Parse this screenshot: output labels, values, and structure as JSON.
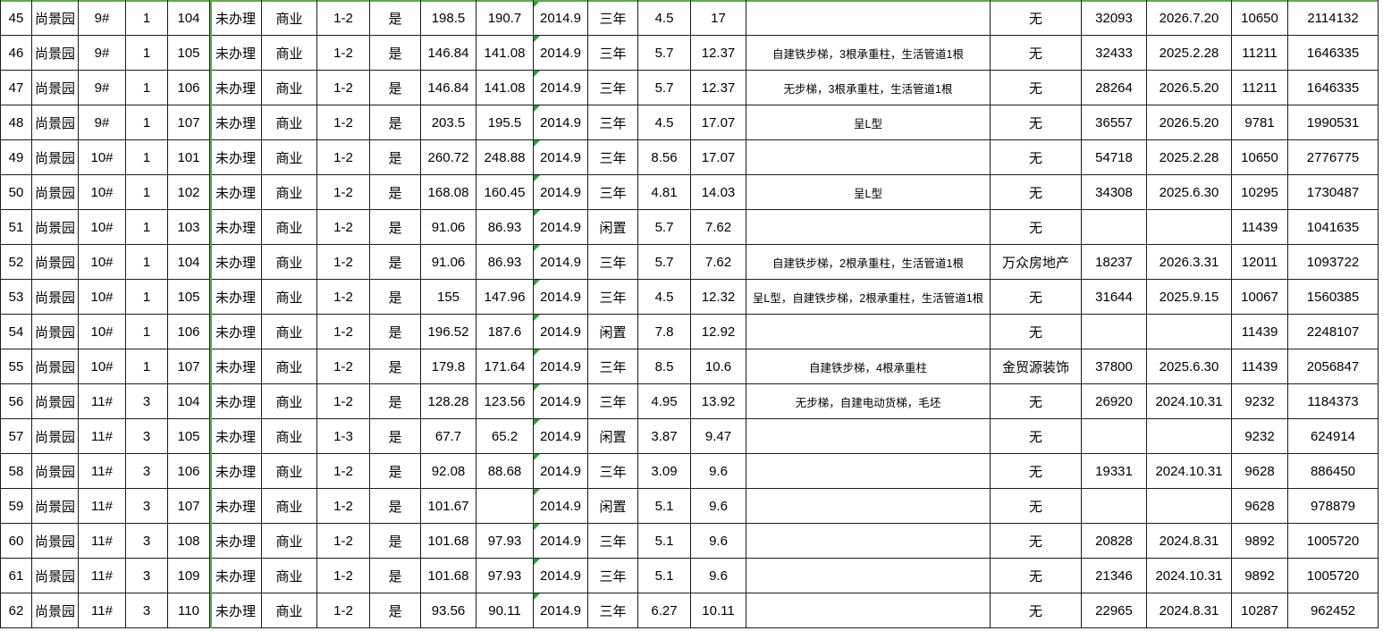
{
  "app": {
    "type": "spreadsheet-grid",
    "visible_rows": "45-62",
    "project_name": "尚景园"
  },
  "colors": {
    "grid_border": "#1c1c1c",
    "page_break_green": "#62a84e",
    "error_triangle_green": "#2e9e38",
    "cell_background": "#ffffff",
    "text": "#000000"
  },
  "markers": {
    "error_indicator_column_index": 11,
    "error_indicator_note": "green triangle in top-left corner of every 2014.9 cell",
    "page_break_vertical_x_column_boundary": "between column 5 and column 6",
    "page_break_horizontal": "green line across top edge of visible area"
  },
  "table": {
    "rows": [
      [
        "45",
        "尚景园",
        "9#",
        "1",
        "104",
        "未办理",
        "商业",
        "1-2",
        "是",
        "198.5",
        "190.7",
        "2014.9",
        "三年",
        "4.5",
        "17",
        "",
        "无",
        "32093",
        "2026.7.20",
        "10650",
        "2114132"
      ],
      [
        "46",
        "尚景园",
        "9#",
        "1",
        "105",
        "未办理",
        "商业",
        "1-2",
        "是",
        "146.84",
        "141.08",
        "2014.9",
        "三年",
        "5.7",
        "12.37",
        "自建铁步梯，3根承重柱，生活管道1根",
        "无",
        "32433",
        "2025.2.28",
        "11211",
        "1646335"
      ],
      [
        "47",
        "尚景园",
        "9#",
        "1",
        "106",
        "未办理",
        "商业",
        "1-2",
        "是",
        "146.84",
        "141.08",
        "2014.9",
        "三年",
        "5.7",
        "12.37",
        "无步梯，3根承重柱，生活管道1根",
        "无",
        "28264",
        "2026.5.20",
        "11211",
        "1646335"
      ],
      [
        "48",
        "尚景园",
        "9#",
        "1",
        "107",
        "未办理",
        "商业",
        "1-2",
        "是",
        "203.5",
        "195.5",
        "2014.9",
        "三年",
        "4.5",
        "17.07",
        "呈L型",
        "无",
        "36557",
        "2026.5.20",
        "9781",
        "1990531"
      ],
      [
        "49",
        "尚景园",
        "10#",
        "1",
        "101",
        "未办理",
        "商业",
        "1-2",
        "是",
        "260.72",
        "248.88",
        "2014.9",
        "三年",
        "8.56",
        "17.07",
        "",
        "无",
        "54718",
        "2025.2.28",
        "10650",
        "2776775"
      ],
      [
        "50",
        "尚景园",
        "10#",
        "1",
        "102",
        "未办理",
        "商业",
        "1-2",
        "是",
        "168.08",
        "160.45",
        "2014.9",
        "三年",
        "4.81",
        "14.03",
        "呈L型",
        "无",
        "34308",
        "2025.6.30",
        "10295",
        "1730487"
      ],
      [
        "51",
        "尚景园",
        "10#",
        "1",
        "103",
        "未办理",
        "商业",
        "1-2",
        "是",
        "91.06",
        "86.93",
        "2014.9",
        "闲置",
        "5.7",
        "7.62",
        "",
        "无",
        "",
        "",
        "11439",
        "1041635"
      ],
      [
        "52",
        "尚景园",
        "10#",
        "1",
        "104",
        "未办理",
        "商业",
        "1-2",
        "是",
        "91.06",
        "86.93",
        "2014.9",
        "三年",
        "5.7",
        "7.62",
        "自建铁步梯，2根承重柱，生活管道1根",
        "万众房地产",
        "18237",
        "2026.3.31",
        "12011",
        "1093722"
      ],
      [
        "53",
        "尚景园",
        "10#",
        "1",
        "105",
        "未办理",
        "商业",
        "1-2",
        "是",
        "155",
        "147.96",
        "2014.9",
        "三年",
        "4.5",
        "12.32",
        "呈L型，自建铁步梯，2根承重柱，生活管道1根",
        "无",
        "31644",
        "2025.9.15",
        "10067",
        "1560385"
      ],
      [
        "54",
        "尚景园",
        "10#",
        "1",
        "106",
        "未办理",
        "商业",
        "1-2",
        "是",
        "196.52",
        "187.6",
        "2014.9",
        "闲置",
        "7.8",
        "12.92",
        "",
        "无",
        "",
        "",
        "11439",
        "2248107"
      ],
      [
        "55",
        "尚景园",
        "10#",
        "1",
        "107",
        "未办理",
        "商业",
        "1-2",
        "是",
        "179.8",
        "171.64",
        "2014.9",
        "三年",
        "8.5",
        "10.6",
        "自建铁步梯，4根承重柱",
        "金贸源装饰",
        "37800",
        "2025.6.30",
        "11439",
        "2056847"
      ],
      [
        "56",
        "尚景园",
        "11#",
        "3",
        "104",
        "未办理",
        "商业",
        "1-2",
        "是",
        "128.28",
        "123.56",
        "2014.9",
        "三年",
        "4.95",
        "13.92",
        "无步梯，自建电动货梯，毛坯",
        "无",
        "26920",
        "2024.10.31",
        "9232",
        "1184373"
      ],
      [
        "57",
        "尚景园",
        "11#",
        "3",
        "105",
        "未办理",
        "商业",
        "1-3",
        "是",
        "67.7",
        "65.2",
        "2014.9",
        "闲置",
        "3.87",
        "9.47",
        "",
        "无",
        "",
        "",
        "9232",
        "624914"
      ],
      [
        "58",
        "尚景园",
        "11#",
        "3",
        "106",
        "未办理",
        "商业",
        "1-2",
        "是",
        "92.08",
        "88.68",
        "2014.9",
        "三年",
        "3.09",
        "9.6",
        "",
        "无",
        "19331",
        "2024.10.31",
        "9628",
        "886450"
      ],
      [
        "59",
        "尚景园",
        "11#",
        "3",
        "107",
        "未办理",
        "商业",
        "1-2",
        "是",
        "101.67",
        "",
        "2014.9",
        "闲置",
        "5.1",
        "9.6",
        "",
        "无",
        "",
        "",
        "9628",
        "978879"
      ],
      [
        "60",
        "尚景园",
        "11#",
        "3",
        "108",
        "未办理",
        "商业",
        "1-2",
        "是",
        "101.68",
        "97.93",
        "2014.9",
        "三年",
        "5.1",
        "9.6",
        "",
        "无",
        "20828",
        "2024.8.31",
        "9892",
        "1005720"
      ],
      [
        "61",
        "尚景园",
        "11#",
        "3",
        "109",
        "未办理",
        "商业",
        "1-2",
        "是",
        "101.68",
        "97.93",
        "2014.9",
        "三年",
        "5.1",
        "9.6",
        "",
        "无",
        "21346",
        "2024.10.31",
        "9892",
        "1005720"
      ],
      [
        "62",
        "尚景园",
        "11#",
        "3",
        "110",
        "未办理",
        "商业",
        "1-2",
        "是",
        "93.56",
        "90.11",
        "2014.9",
        "三年",
        "6.27",
        "10.11",
        "",
        "无",
        "22965",
        "2024.8.31",
        "10287",
        "962452"
      ]
    ]
  }
}
